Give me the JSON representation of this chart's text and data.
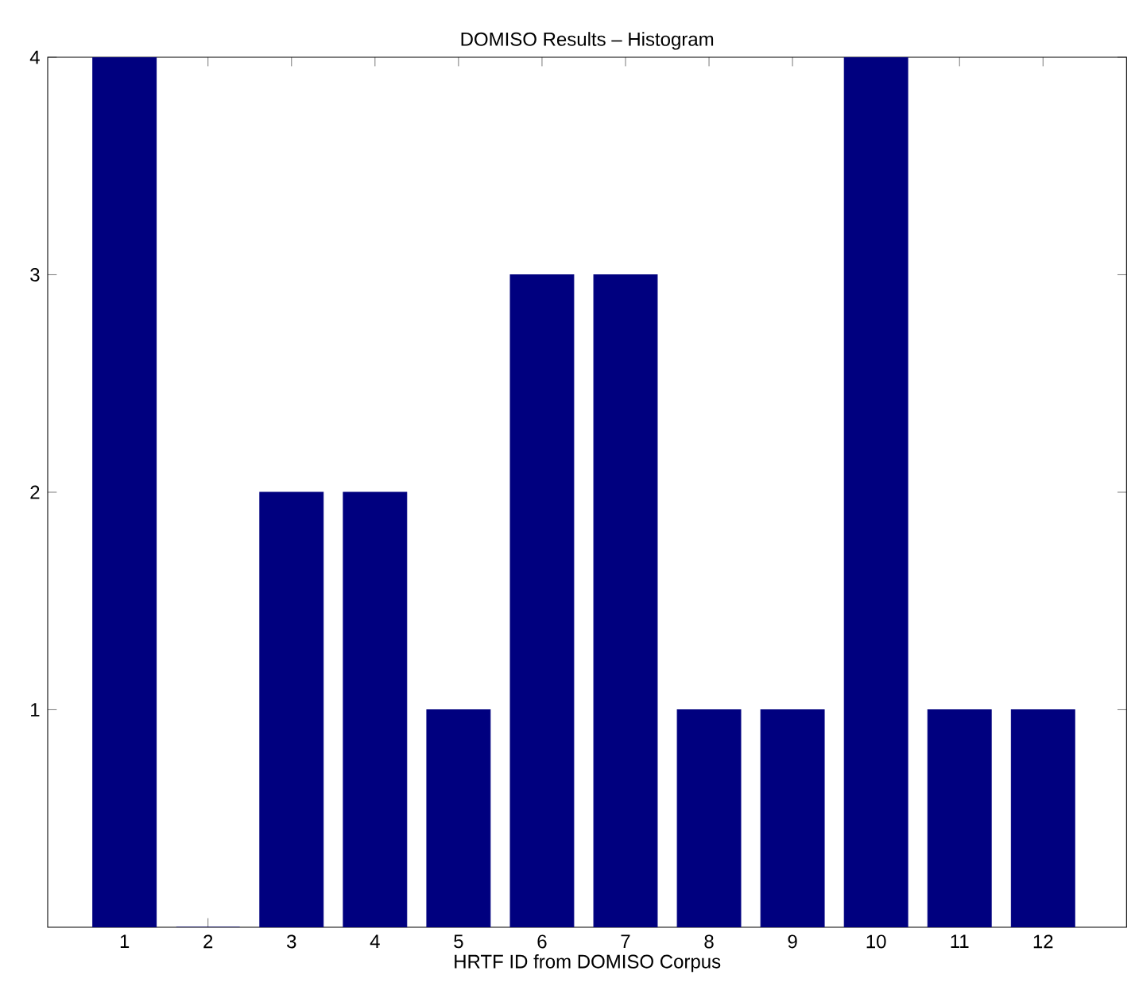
{
  "chart_data": {
    "type": "bar",
    "title": "DOMISO Results – Histogram",
    "xlabel": "HRTF ID from DOMISO Corpus",
    "categories": [
      "1",
      "2",
      "3",
      "4",
      "5",
      "6",
      "7",
      "8",
      "9",
      "10",
      "11",
      "12"
    ],
    "values": [
      4,
      0,
      2,
      2,
      1,
      3,
      3,
      1,
      1,
      4,
      1,
      1
    ],
    "color": "#00007f",
    "ylim": [
      0,
      4
    ],
    "yticks": [
      1,
      2,
      3,
      4
    ],
    "grid": false
  }
}
